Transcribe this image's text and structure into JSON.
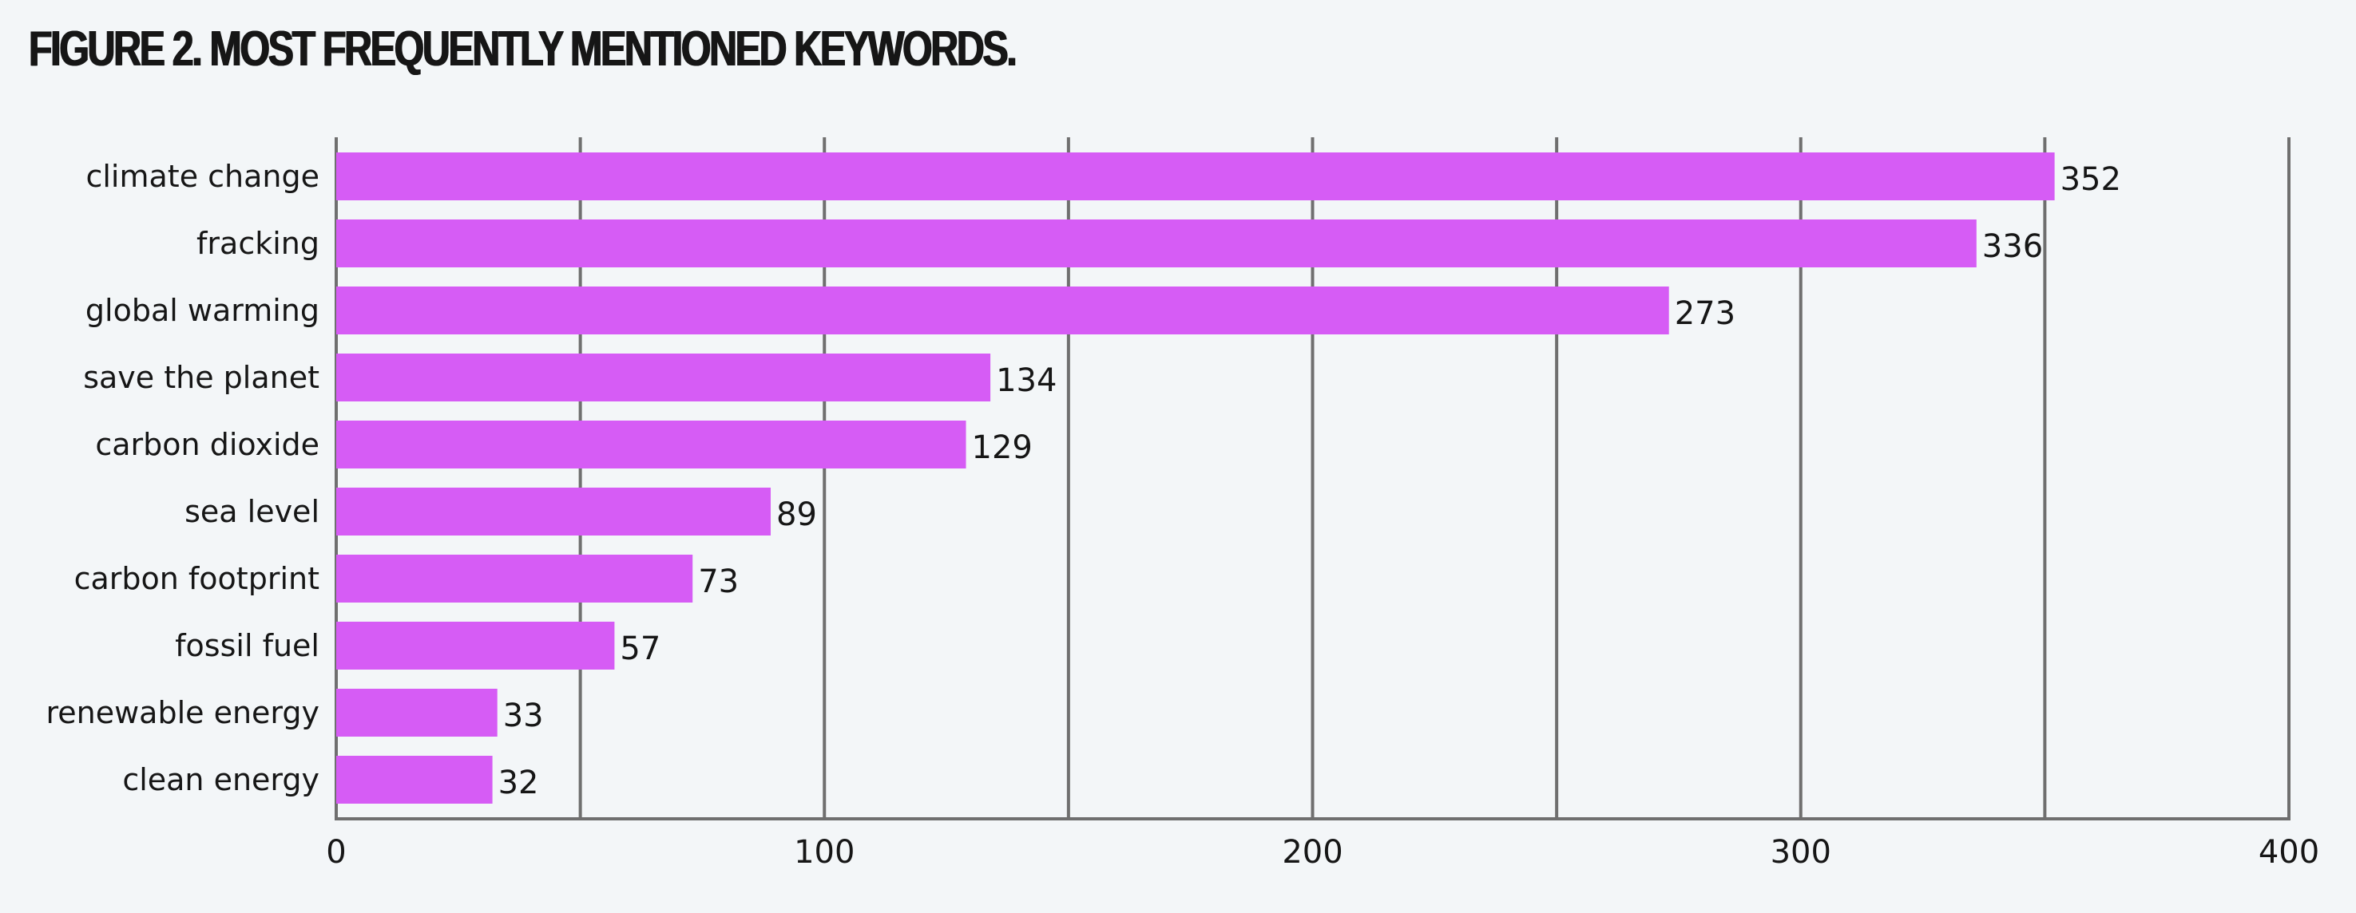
{
  "page": {
    "title": "FIGURE 2. MOST FREQUENTLY MENTIONED KEYWORDS."
  },
  "chart_data": {
    "type": "bar",
    "orientation": "horizontal",
    "title": "FIGURE 2. MOST FREQUENTLY MENTIONED KEYWORDS.",
    "categories": [
      "climate change",
      "fracking",
      "global warming",
      "save the planet",
      "carbon dioxide",
      "sea level",
      "carbon footprint",
      "fossil fuel",
      "renewable energy",
      "clean energy"
    ],
    "values": [
      352,
      336,
      273,
      134,
      129,
      89,
      73,
      57,
      33,
      32
    ],
    "data_labels": [
      "352",
      "336",
      "273",
      "134",
      "129",
      "89",
      "73",
      "57",
      "33",
      "32"
    ],
    "xlim": [
      0,
      400
    ],
    "x_ticks": [
      0,
      100,
      200,
      300,
      400
    ],
    "x_tick_labels": [
      "0",
      "100",
      "200",
      "300",
      "400"
    ],
    "gridlines_at": [
      0,
      50,
      100,
      150,
      200,
      250,
      300,
      350,
      400
    ],
    "grid": true,
    "legend": "none",
    "xlabel": "",
    "ylabel": "",
    "colors": {
      "bar": "#d65cf5",
      "grid": "#6f6f6f",
      "text": "#161616",
      "background": "#f3f6f8"
    }
  }
}
